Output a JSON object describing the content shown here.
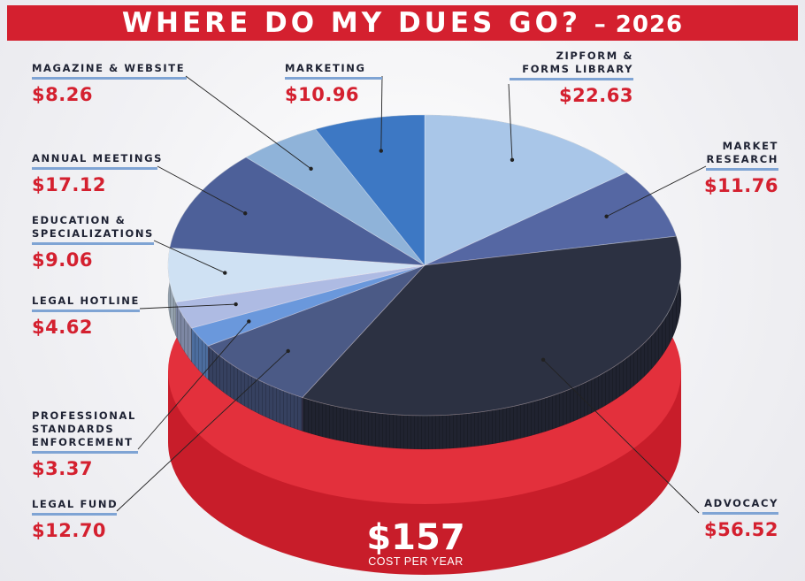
{
  "title": {
    "main": "WHERE DO MY DUES GO?",
    "year": "– 2026"
  },
  "total": {
    "amount": "$157",
    "caption": "COST PER YEAR"
  },
  "chart_data": {
    "type": "pie",
    "title": "WHERE DO MY DUES GO? – 2026",
    "unit": "USD",
    "total": 157,
    "slices": [
      {
        "label": "ZIPFORM & FORMS LIBRARY",
        "value": 22.63,
        "display": "$22.63",
        "color": "#a9c6e8"
      },
      {
        "label": "MARKET RESEARCH",
        "value": 11.76,
        "display": "$11.76",
        "color": "#5567a3"
      },
      {
        "label": "ADVOCACY",
        "value": 56.52,
        "display": "$56.52",
        "color": "#2c3142"
      },
      {
        "label": "LEGAL FUND",
        "value": 12.7,
        "display": "$12.70",
        "color": "#4b5a86"
      },
      {
        "label": "PROFESSIONAL STANDARDS ENFORCEMENT",
        "value": 3.37,
        "display": "$3.37",
        "color": "#6a98dc"
      },
      {
        "label": "LEGAL HOTLINE",
        "value": 4.62,
        "display": "$4.62",
        "color": "#aebbe3"
      },
      {
        "label": "EDUCATION & SPECIALIZATIONS",
        "value": 9.06,
        "display": "$9.06",
        "color": "#cfe1f3"
      },
      {
        "label": "ANNUAL MEETINGS",
        "value": 17.12,
        "display": "$17.12",
        "color": "#4d6099"
      },
      {
        "label": "MAGAZINE & WEBSITE",
        "value": 8.26,
        "display": "$8.26",
        "color": "#8fb3d9"
      },
      {
        "label": "MARKETING",
        "value": 10.96,
        "display": "$10.96",
        "color": "#3d78c4"
      }
    ]
  },
  "labels": {
    "zipform": {
      "line1": "ZIPFORM &",
      "line2": "FORMS LIBRARY"
    },
    "market": {
      "line1": "MARKET",
      "line2": "RESEARCH"
    },
    "advocacy": {
      "line1": "ADVOCACY"
    },
    "legal_fund": {
      "line1": "LEGAL FUND"
    },
    "pse": {
      "line1": "PROFESSIONAL",
      "line2": "STANDARDS",
      "line3": "ENFORCEMENT"
    },
    "hotline": {
      "line1": "LEGAL HOTLINE"
    },
    "education": {
      "line1": "EDUCATION &",
      "line2": "SPECIALIZATIONS"
    },
    "annual": {
      "line1": "ANNUAL MEETINGS"
    },
    "magazine": {
      "line1": "MAGAZINE & WEBSITE"
    },
    "marketing": {
      "line1": "MARKETING"
    }
  }
}
